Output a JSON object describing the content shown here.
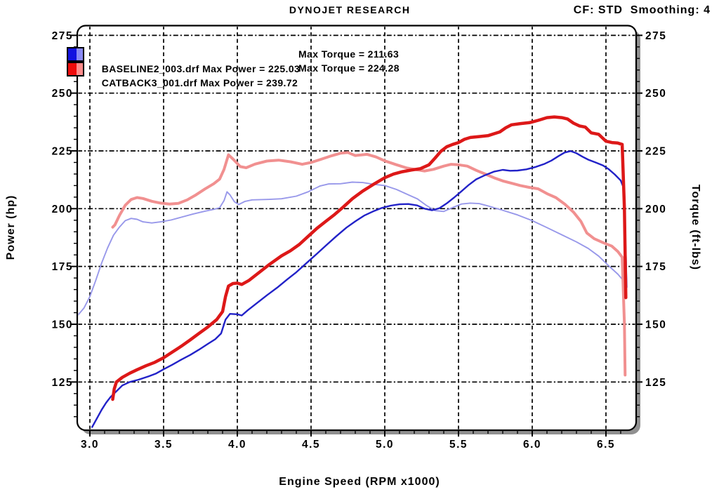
{
  "header": {
    "title": "DYNOJET RESEARCH",
    "settings": "CF: STD  Smoothing: 4"
  },
  "legend": {
    "rows": [
      {
        "id": "baseline",
        "file_and_power": "BASELINE2_003.drf Max Power = 225.03",
        "torque": "Max Torque = 211.63",
        "swatch_dark": "#1212e0",
        "swatch_light": "#8a8af5"
      },
      {
        "id": "catback",
        "file_and_power": "CATBACK3_001.drf Max Power = 239.72",
        "torque": "Max Torque = 224.28",
        "swatch_dark": "#ee0c0c",
        "swatch_light": "#ff8c8c"
      }
    ]
  },
  "chart_data": {
    "type": "line",
    "title": "DYNOJET RESEARCH",
    "xlabel": "Engine Speed (RPM x1000)",
    "ylabel_left": "Power (hp)",
    "ylabel_right": "Torque (ft-lbs)",
    "xlim": [
      2.914,
      6.705
    ],
    "ylim": [
      104.1,
      279.2
    ],
    "grid": true,
    "x_major_ticks": [
      3.0,
      3.5,
      4.0,
      4.5,
      5.0,
      5.5,
      6.0,
      6.5
    ],
    "x_tick_labels": [
      "3.0",
      "3.5",
      "4.0",
      "4.5",
      "5.0",
      "5.5",
      "6.0",
      "6.5"
    ],
    "x_minor": {
      "start": 3.0,
      "end": 6.7,
      "step": 0.1
    },
    "y_major_ticks": [
      125,
      150,
      175,
      200,
      225,
      250,
      275
    ],
    "y_tick_labels": [
      "125",
      "150",
      "175",
      "200",
      "225",
      "250",
      "275"
    ],
    "y_minor": {
      "start": 110,
      "end": 275,
      "step": 5
    },
    "frame_shadow_color": "#909090",
    "grid_color": "#000000",
    "series": [
      {
        "name": "baseline_torque",
        "run": "BASELINE2_003.drf",
        "quantity": "Torque (ft-lbs)",
        "max_value": 211.63,
        "color": "#9898ea",
        "width": 1.9,
        "points": [
          [
            2.92,
            154
          ],
          [
            2.96,
            157
          ],
          [
            3.0,
            162
          ],
          [
            3.04,
            169
          ],
          [
            3.08,
            176.5
          ],
          [
            3.12,
            183
          ],
          [
            3.16,
            188.5
          ],
          [
            3.2,
            192
          ],
          [
            3.24,
            194.8
          ],
          [
            3.28,
            195.8
          ],
          [
            3.32,
            195.4
          ],
          [
            3.36,
            194.3
          ],
          [
            3.42,
            193.8
          ],
          [
            3.48,
            194.3
          ],
          [
            3.55,
            195.1
          ],
          [
            3.62,
            196.3
          ],
          [
            3.7,
            197.7
          ],
          [
            3.78,
            198.9
          ],
          [
            3.84,
            199.7
          ],
          [
            3.88,
            200.4
          ],
          [
            3.91,
            203.5
          ],
          [
            3.93,
            207.3
          ],
          [
            3.95,
            206
          ],
          [
            3.98,
            203
          ],
          [
            4.01,
            201.8
          ],
          [
            4.05,
            203.1
          ],
          [
            4.1,
            203.8
          ],
          [
            4.2,
            204
          ],
          [
            4.3,
            204.3
          ],
          [
            4.4,
            205.4
          ],
          [
            4.48,
            207.3
          ],
          [
            4.56,
            209.8
          ],
          [
            4.62,
            210.7
          ],
          [
            4.7,
            210.8
          ],
          [
            4.78,
            211.5
          ],
          [
            4.85,
            211.3
          ],
          [
            4.92,
            210.6
          ],
          [
            5.0,
            210
          ],
          [
            5.08,
            208.3
          ],
          [
            5.16,
            206
          ],
          [
            5.22,
            204.3
          ],
          [
            5.28,
            201.5
          ],
          [
            5.34,
            199.2
          ],
          [
            5.4,
            198.8
          ],
          [
            5.46,
            200.5
          ],
          [
            5.52,
            202
          ],
          [
            5.58,
            202.4
          ],
          [
            5.64,
            202.2
          ],
          [
            5.7,
            201.2
          ],
          [
            5.8,
            199.3
          ],
          [
            5.9,
            197.3
          ],
          [
            6.0,
            194.8
          ],
          [
            6.1,
            191.8
          ],
          [
            6.2,
            188.7
          ],
          [
            6.3,
            185.6
          ],
          [
            6.38,
            182.8
          ],
          [
            6.45,
            179.5
          ],
          [
            6.52,
            175.2
          ],
          [
            6.58,
            171.7
          ],
          [
            6.62,
            168.8
          ],
          [
            6.64,
            167.5
          ]
        ]
      },
      {
        "name": "catback_torque",
        "run": "CATBACK3_001.drf",
        "quantity": "Torque (ft-lbs)",
        "max_value": 224.28,
        "color": "#f19090",
        "width": 4,
        "points": [
          [
            3.155,
            192
          ],
          [
            3.17,
            193
          ],
          [
            3.2,
            197
          ],
          [
            3.24,
            201.5
          ],
          [
            3.28,
            204
          ],
          [
            3.32,
            204.8
          ],
          [
            3.36,
            204.4
          ],
          [
            3.42,
            203.2
          ],
          [
            3.48,
            202.4
          ],
          [
            3.54,
            202
          ],
          [
            3.6,
            202.3
          ],
          [
            3.66,
            203.8
          ],
          [
            3.72,
            206
          ],
          [
            3.78,
            208.5
          ],
          [
            3.84,
            210.8
          ],
          [
            3.88,
            212.8
          ],
          [
            3.91,
            217
          ],
          [
            3.94,
            223.3
          ],
          [
            3.97,
            221.5
          ],
          [
            4.02,
            218.2
          ],
          [
            4.06,
            217.7
          ],
          [
            4.12,
            219.3
          ],
          [
            4.2,
            220.6
          ],
          [
            4.28,
            221
          ],
          [
            4.36,
            220.3
          ],
          [
            4.44,
            219.2
          ],
          [
            4.5,
            220
          ],
          [
            4.56,
            221.2
          ],
          [
            4.64,
            222.9
          ],
          [
            4.7,
            224
          ],
          [
            4.75,
            224.3
          ],
          [
            4.8,
            223
          ],
          [
            4.88,
            223.5
          ],
          [
            4.94,
            222.4
          ],
          [
            5.0,
            220.7
          ],
          [
            5.08,
            219
          ],
          [
            5.15,
            217.6
          ],
          [
            5.22,
            216.8
          ],
          [
            5.27,
            216.3
          ],
          [
            5.33,
            217
          ],
          [
            5.4,
            218.4
          ],
          [
            5.45,
            219.2
          ],
          [
            5.5,
            219
          ],
          [
            5.56,
            218.4
          ],
          [
            5.62,
            216.6
          ],
          [
            5.68,
            215
          ],
          [
            5.74,
            213.4
          ],
          [
            5.8,
            212
          ],
          [
            5.86,
            211
          ],
          [
            5.92,
            210
          ],
          [
            5.98,
            209.2
          ],
          [
            6.04,
            208.6
          ],
          [
            6.1,
            206.5
          ],
          [
            6.16,
            204.8
          ],
          [
            6.22,
            202
          ],
          [
            6.28,
            198.5
          ],
          [
            6.33,
            194.5
          ],
          [
            6.37,
            189.5
          ],
          [
            6.42,
            187
          ],
          [
            6.48,
            185.3
          ],
          [
            6.54,
            183.8
          ],
          [
            6.58,
            181.5
          ],
          [
            6.61,
            179
          ],
          [
            6.625,
            150
          ],
          [
            6.63,
            128
          ]
        ]
      },
      {
        "name": "baseline_power",
        "run": "BASELINE2_003.drf",
        "quantity": "Power (hp)",
        "max_value": 225.03,
        "color": "#2222c8",
        "width": 2.4,
        "points": [
          [
            3.015,
            105.5
          ],
          [
            3.05,
            109.5
          ],
          [
            3.08,
            113
          ],
          [
            3.11,
            116
          ],
          [
            3.14,
            118.5
          ],
          [
            3.18,
            121
          ],
          [
            3.22,
            123.5
          ],
          [
            3.27,
            125
          ],
          [
            3.33,
            126
          ],
          [
            3.4,
            127.5
          ],
          [
            3.45,
            128.7
          ],
          [
            3.5,
            130.5
          ],
          [
            3.56,
            132.5
          ],
          [
            3.62,
            134.7
          ],
          [
            3.68,
            136.7
          ],
          [
            3.74,
            139
          ],
          [
            3.8,
            141.5
          ],
          [
            3.85,
            143.5
          ],
          [
            3.89,
            146
          ],
          [
            3.92,
            152
          ],
          [
            3.95,
            154.5
          ],
          [
            4.0,
            154.3
          ],
          [
            4.03,
            153.8
          ],
          [
            4.07,
            156
          ],
          [
            4.13,
            159
          ],
          [
            4.2,
            162.5
          ],
          [
            4.27,
            165.8
          ],
          [
            4.34,
            169.5
          ],
          [
            4.4,
            172.5
          ],
          [
            4.47,
            176.5
          ],
          [
            4.54,
            180.5
          ],
          [
            4.6,
            184
          ],
          [
            4.67,
            188
          ],
          [
            4.74,
            191.8
          ],
          [
            4.8,
            194.5
          ],
          [
            4.86,
            197
          ],
          [
            4.92,
            198.8
          ],
          [
            4.98,
            200.3
          ],
          [
            5.04,
            201.3
          ],
          [
            5.1,
            201.9
          ],
          [
            5.16,
            202
          ],
          [
            5.22,
            201.4
          ],
          [
            5.27,
            200
          ],
          [
            5.32,
            199.3
          ],
          [
            5.37,
            200.2
          ],
          [
            5.42,
            202.3
          ],
          [
            5.47,
            204.8
          ],
          [
            5.52,
            207.5
          ],
          [
            5.57,
            210.3
          ],
          [
            5.62,
            212.7
          ],
          [
            5.68,
            214.5
          ],
          [
            5.74,
            216
          ],
          [
            5.8,
            216.8
          ],
          [
            5.85,
            216.4
          ],
          [
            5.9,
            216.5
          ],
          [
            5.96,
            217
          ],
          [
            6.02,
            218
          ],
          [
            6.08,
            219.3
          ],
          [
            6.13,
            220.8
          ],
          [
            6.18,
            222.8
          ],
          [
            6.22,
            224.3
          ],
          [
            6.26,
            224.9
          ],
          [
            6.3,
            224
          ],
          [
            6.34,
            222.5
          ],
          [
            6.38,
            221.2
          ],
          [
            6.43,
            220
          ],
          [
            6.48,
            218.7
          ],
          [
            6.52,
            217
          ],
          [
            6.56,
            214.8
          ],
          [
            6.6,
            212.2
          ],
          [
            6.62,
            209
          ],
          [
            6.635,
            180
          ],
          [
            6.64,
            166
          ]
        ]
      },
      {
        "name": "catback_power",
        "run": "CATBACK3_001.drf",
        "quantity": "Power (hp)",
        "max_value": 239.72,
        "color": "#dd1818",
        "width": 4.5,
        "points": [
          [
            3.155,
            117.5
          ],
          [
            3.165,
            122
          ],
          [
            3.18,
            125
          ],
          [
            3.22,
            127
          ],
          [
            3.27,
            128.8
          ],
          [
            3.32,
            130.3
          ],
          [
            3.38,
            132
          ],
          [
            3.44,
            133.5
          ],
          [
            3.5,
            135.5
          ],
          [
            3.56,
            138
          ],
          [
            3.62,
            140.5
          ],
          [
            3.68,
            143.2
          ],
          [
            3.74,
            146
          ],
          [
            3.8,
            148.8
          ],
          [
            3.86,
            152
          ],
          [
            3.9,
            155.5
          ],
          [
            3.92,
            162
          ],
          [
            3.94,
            166.5
          ],
          [
            3.97,
            167.6
          ],
          [
            4.0,
            167.8
          ],
          [
            4.03,
            167.2
          ],
          [
            4.08,
            169
          ],
          [
            4.15,
            172.5
          ],
          [
            4.22,
            176
          ],
          [
            4.3,
            179.6
          ],
          [
            4.36,
            181.8
          ],
          [
            4.42,
            184.5
          ],
          [
            4.48,
            188
          ],
          [
            4.54,
            191.5
          ],
          [
            4.6,
            194.5
          ],
          [
            4.66,
            197.5
          ],
          [
            4.72,
            200.8
          ],
          [
            4.78,
            204.3
          ],
          [
            4.85,
            207.6
          ],
          [
            4.92,
            210.4
          ],
          [
            5.0,
            213.4
          ],
          [
            5.06,
            215
          ],
          [
            5.12,
            216
          ],
          [
            5.18,
            216.7
          ],
          [
            5.24,
            217.3
          ],
          [
            5.3,
            219
          ],
          [
            5.34,
            221.8
          ],
          [
            5.38,
            224.8
          ],
          [
            5.42,
            226.8
          ],
          [
            5.46,
            227.8
          ],
          [
            5.5,
            228.6
          ],
          [
            5.54,
            230
          ],
          [
            5.58,
            230.8
          ],
          [
            5.64,
            231.2
          ],
          [
            5.7,
            231.6
          ],
          [
            5.74,
            232.4
          ],
          [
            5.78,
            233.2
          ],
          [
            5.82,
            235
          ],
          [
            5.86,
            236.3
          ],
          [
            5.92,
            236.8
          ],
          [
            5.98,
            237.2
          ],
          [
            6.04,
            238.2
          ],
          [
            6.1,
            239.4
          ],
          [
            6.15,
            239.7
          ],
          [
            6.2,
            239.4
          ],
          [
            6.24,
            238.8
          ],
          [
            6.28,
            237
          ],
          [
            6.32,
            235.8
          ],
          [
            6.36,
            235.3
          ],
          [
            6.4,
            232.8
          ],
          [
            6.45,
            232.2
          ],
          [
            6.5,
            229.2
          ],
          [
            6.54,
            228.6
          ],
          [
            6.58,
            228.4
          ],
          [
            6.61,
            227.8
          ],
          [
            6.625,
            200
          ],
          [
            6.635,
            161.5
          ]
        ]
      }
    ]
  }
}
